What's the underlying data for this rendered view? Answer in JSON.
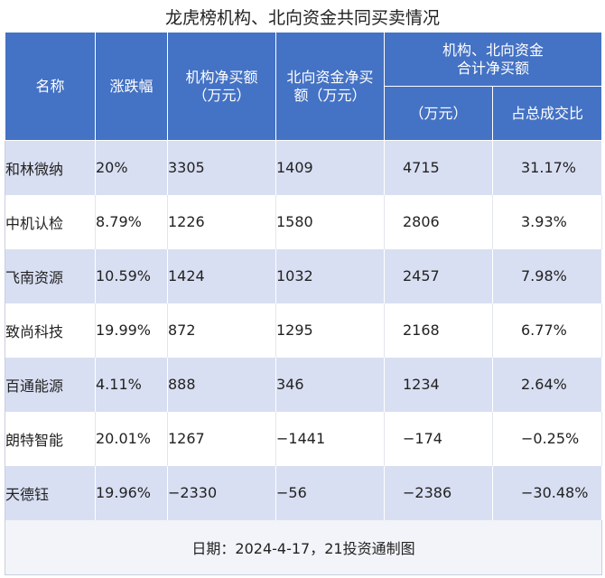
{
  "title": "龙虎榜机构、北向资金共同买卖情况",
  "headers": {
    "name": "名称",
    "change": "涨跌幅",
    "inst_line1": "机构净买额",
    "inst_line2": "（万元）",
    "north_line1": "北向资金净买",
    "north_line2": "额（万元）",
    "combined_line1": "机构、北向资金",
    "combined_line2": "合计净买额",
    "combined_unit": "（万元）",
    "share": "占总成交比"
  },
  "rows": [
    {
      "name": "和林微纳",
      "change": "20%",
      "inst": "3305",
      "north": "1409",
      "total": "4715",
      "share": "31.17%"
    },
    {
      "name": "中机认检",
      "change": "8.79%",
      "inst": "1226",
      "north": "1580",
      "total": "2806",
      "share": "3.93%"
    },
    {
      "name": "飞南资源",
      "change": "10.59%",
      "inst": "1424",
      "north": "1032",
      "total": "2457",
      "share": "7.98%"
    },
    {
      "name": "致尚科技",
      "change": "19.99%",
      "inst": "872",
      "north": "1295",
      "total": "2168",
      "share": "6.77%"
    },
    {
      "name": "百通能源",
      "change": "4.11%",
      "inst": "888",
      "north": "346",
      "total": "1234",
      "share": "2.64%"
    },
    {
      "name": "朗特智能",
      "change": "20.01%",
      "inst": "1267",
      "north": "−1441",
      "total": "−174",
      "share": "−0.25%"
    },
    {
      "name": "天德钰",
      "change": "19.96%",
      "inst": "−2330",
      "north": "−56",
      "total": "−2386",
      "share": "−30.48%"
    }
  ],
  "footer": "日期：2024-4-17，21投资通制图",
  "colors": {
    "header_bg": "#4472c4",
    "band": "#d9dff2",
    "footer_bg": "#f2f4f9"
  }
}
